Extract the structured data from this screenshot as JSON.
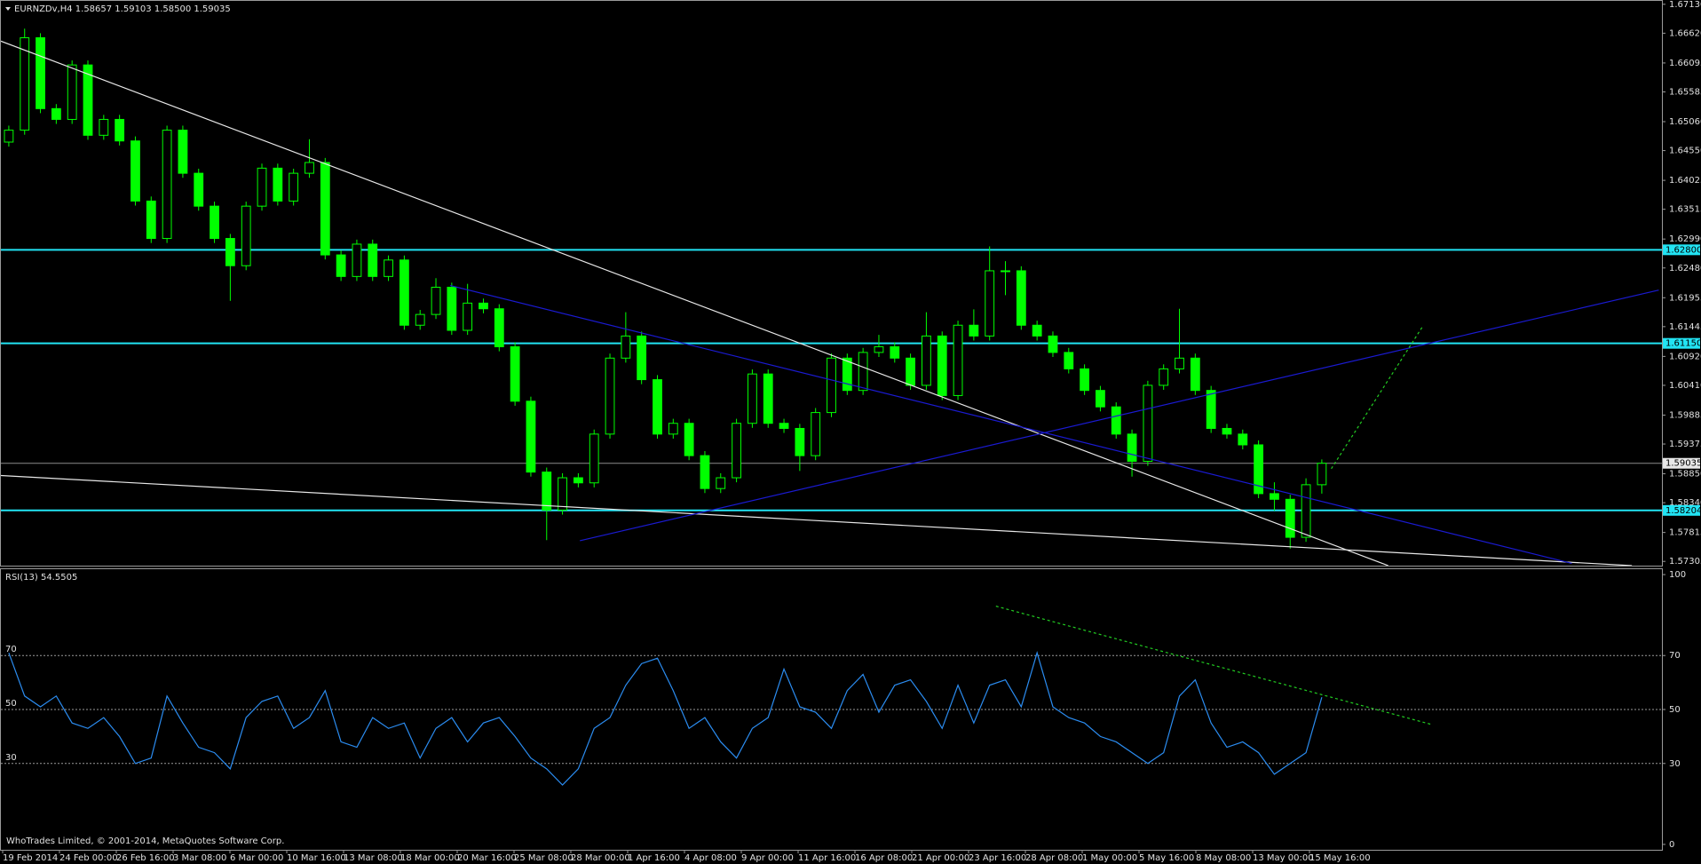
{
  "chart_data": [
    {
      "type": "candlestick",
      "title": "EURNZDv,H4  1.58657 1.59103 1.58500 1.59035",
      "color": "#00ff00",
      "x_labels": [
        "19 Feb 2014",
        "24 Feb 00:00",
        "26 Feb 16:00",
        "3 Mar 08:00",
        "6 Mar 00:00",
        "10 Mar 16:00",
        "13 Mar 08:00",
        "18 Mar 00:00",
        "20 Mar 16:00",
        "25 Mar 08:00",
        "28 Mar 00:00",
        "1 Apr 16:00",
        "4 Apr 08:00",
        "9 Apr 00:00",
        "11 Apr 16:00",
        "16 Apr 08:00",
        "21 Apr 00:00",
        "23 Apr 16:00",
        "28 Apr 08:00",
        "1 May 00:00",
        "5 May 16:00",
        "8 May 08:00",
        "13 May 00:00",
        "15 May 16:00"
      ],
      "open": [
        1.647,
        1.6491,
        1.6654,
        1.6529,
        1.651,
        1.6606,
        1.6482,
        1.651,
        1.6472,
        1.6366,
        1.63,
        1.6491,
        1.6415,
        1.6357,
        1.63,
        1.6252,
        1.6357,
        1.6424,
        1.6366,
        1.6415,
        1.6434,
        1.6271,
        1.6233,
        1.629,
        1.6233,
        1.6262,
        1.6147,
        1.6166,
        1.6214,
        1.6138,
        1.6186,
        1.6176,
        1.6109,
        1.6013,
        1.5888,
        1.5821,
        1.5878,
        1.5869,
        1.5955,
        1.6089,
        1.6128,
        1.6051,
        1.5955,
        1.5974,
        1.5917,
        1.5859,
        1.5878,
        1.5974,
        1.6061,
        1.5974,
        1.5965,
        1.5917,
        1.5993,
        1.6089,
        1.6032,
        1.6099,
        1.6109,
        1.6089,
        1.6041,
        1.6128,
        1.6023,
        1.6147,
        1.6128,
        1.6243,
        1.6243,
        1.6147,
        1.6128,
        1.6099,
        1.607,
        1.6032,
        1.6003,
        1.5955,
        1.5907,
        1.6041,
        1.607,
        1.6089,
        1.6032,
        1.5965,
        1.5955,
        1.5936,
        1.585,
        1.584,
        1.5773,
        1.58657
      ],
      "high": [
        1.6499,
        1.667,
        1.6662,
        1.6537,
        1.6614,
        1.6614,
        1.6518,
        1.6518,
        1.648,
        1.6374,
        1.6499,
        1.6499,
        1.6423,
        1.6365,
        1.6308,
        1.6365,
        1.6432,
        1.6432,
        1.6423,
        1.6475,
        1.6442,
        1.6279,
        1.6298,
        1.6298,
        1.627,
        1.627,
        1.6174,
        1.623,
        1.6222,
        1.622,
        1.6194,
        1.6184,
        1.6117,
        1.6021,
        1.5896,
        1.5886,
        1.5886,
        1.5963,
        1.6097,
        1.617,
        1.6136,
        1.6059,
        1.5982,
        1.5982,
        1.5925,
        1.5886,
        1.5982,
        1.6069,
        1.6069,
        1.5982,
        1.5973,
        1.6001,
        1.6097,
        1.6097,
        1.6107,
        1.613,
        1.6117,
        1.6097,
        1.617,
        1.6136,
        1.6155,
        1.6175,
        1.6286,
        1.626,
        1.6251,
        1.6155,
        1.6136,
        1.6107,
        1.6078,
        1.604,
        1.6011,
        1.5963,
        1.6049,
        1.6078,
        1.6176,
        1.6097,
        1.604,
        1.5973,
        1.5963,
        1.5944,
        1.587,
        1.5848,
        1.5877,
        1.59103
      ],
      "low": [
        1.6462,
        1.6483,
        1.6521,
        1.6502,
        1.6502,
        1.6474,
        1.6474,
        1.6464,
        1.6358,
        1.6292,
        1.6292,
        1.6407,
        1.6349,
        1.6292,
        1.619,
        1.6244,
        1.6349,
        1.6358,
        1.6358,
        1.6407,
        1.6263,
        1.6225,
        1.6225,
        1.6225,
        1.6225,
        1.6139,
        1.6139,
        1.6158,
        1.613,
        1.613,
        1.6168,
        1.6101,
        1.6005,
        1.588,
        1.5768,
        1.5813,
        1.5861,
        1.5861,
        1.5947,
        1.6081,
        1.6043,
        1.5947,
        1.5947,
        1.5909,
        1.5851,
        1.5851,
        1.587,
        1.5966,
        1.5966,
        1.5957,
        1.589,
        1.5909,
        1.5985,
        1.6024,
        1.6024,
        1.6091,
        1.6081,
        1.6033,
        1.6033,
        1.6015,
        1.6015,
        1.612,
        1.612,
        1.62,
        1.6139,
        1.612,
        1.6091,
        1.6062,
        1.6024,
        1.5995,
        1.5947,
        1.588,
        1.5899,
        1.6033,
        1.6062,
        1.6024,
        1.5957,
        1.5947,
        1.5928,
        1.5842,
        1.582,
        1.5753,
        1.5765,
        1.585
      ],
      "close": [
        1.6491,
        1.6654,
        1.6529,
        1.651,
        1.6606,
        1.6482,
        1.651,
        1.6472,
        1.6366,
        1.63,
        1.6491,
        1.6415,
        1.6357,
        1.63,
        1.6252,
        1.6357,
        1.6424,
        1.6366,
        1.6415,
        1.6434,
        1.6271,
        1.6233,
        1.629,
        1.6233,
        1.6262,
        1.6147,
        1.6166,
        1.6214,
        1.6138,
        1.6186,
        1.6176,
        1.6109,
        1.6013,
        1.5888,
        1.5821,
        1.5878,
        1.5869,
        1.5955,
        1.6089,
        1.6128,
        1.6051,
        1.5955,
        1.5974,
        1.5917,
        1.5859,
        1.5878,
        1.5974,
        1.6061,
        1.5974,
        1.5965,
        1.5917,
        1.5993,
        1.6089,
        1.6032,
        1.6099,
        1.6109,
        1.6089,
        1.6041,
        1.6128,
        1.6023,
        1.6147,
        1.6128,
        1.6243,
        1.6243,
        1.6147,
        1.6128,
        1.6099,
        1.607,
        1.6032,
        1.6003,
        1.5955,
        1.5907,
        1.6041,
        1.607,
        1.6089,
        1.6032,
        1.5965,
        1.5955,
        1.5936,
        1.585,
        1.584,
        1.5773,
        1.58657,
        1.59035
      ],
      "xlim": [
        0,
        105
      ],
      "ylim": [
        1.5723,
        1.6719
      ],
      "yticks": [
        {
          "value": 1.6713,
          "label": "1.67130"
        },
        {
          "value": 1.6662,
          "label": "1.66620"
        },
        1.66095,
        1.65585,
        {
          "value": 1.6506,
          "label": "1.65060"
        },
        {
          "value": 1.6455,
          "label": "1.64550"
        },
        1.64025,
        1.63515,
        {
          "value": 1.6299,
          "label": "1.62990"
        },
        {
          "value": 1.6248,
          "label": "1.62480"
        },
        1.61955,
        1.61445,
        {
          "value": 1.6092,
          "label": "1.60920"
        },
        {
          "value": 1.6041,
          "label": "1.60410"
        },
        1.59885,
        1.59375,
        {
          "value": 1.5885,
          "label": "1.58850"
        },
        {
          "value": 1.5834,
          "label": "1.58340"
        },
        1.57815,
        1.57305
      ],
      "levels": [
        {
          "value": 1.628,
          "label": "1.62800",
          "color": "#22e4f4"
        },
        {
          "value": 1.6115,
          "label": "1.61150",
          "color": "#22e4f4"
        },
        {
          "value": 1.58204,
          "label": "1.58204",
          "color": "#22e4f4"
        },
        {
          "value": 1.59035,
          "label": "1.59035",
          "color": "#8a8a8a"
        }
      ],
      "trendlines": [
        {
          "color": "#e8e8e8",
          "dashed": false,
          "points": [
            [
              0,
              1.6648
            ],
            [
              87.7,
              1.5723
            ]
          ]
        },
        {
          "color": "#e8e8e8",
          "dashed": false,
          "points": [
            [
              0,
              1.5882
            ],
            [
              103.1,
              1.5723
            ]
          ]
        },
        {
          "color": "#1a1ad0",
          "dashed": false,
          "points": [
            [
              28.4,
              1.6217
            ],
            [
              99.3,
              1.5727
            ]
          ]
        },
        {
          "color": "#1a1ad0",
          "dashed": false,
          "points": [
            [
              36.6,
              1.5767
            ],
            [
              104.8,
              1.6209
            ]
          ]
        },
        {
          "color": "#22cc22",
          "dashed": true,
          "points": [
            [
              84.1,
              1.5894
            ],
            [
              89.9,
              1.6146
            ]
          ]
        }
      ]
    },
    {
      "type": "line",
      "title": "RSI(13) 54.5505",
      "color": "#2b8cf0",
      "values": [
        71,
        55,
        51,
        55,
        45,
        43,
        47,
        40,
        30,
        32,
        55,
        45,
        36,
        34,
        28,
        47,
        53,
        55,
        43,
        47,
        57,
        38,
        36,
        47,
        43,
        45,
        32,
        43,
        47,
        38,
        45,
        47,
        40,
        32,
        28,
        22,
        28,
        43,
        47,
        59,
        67,
        69,
        57,
        43,
        47,
        38,
        32,
        43,
        47,
        65,
        51,
        49,
        43,
        57,
        63,
        49,
        59,
        61,
        53,
        43,
        59,
        45,
        59,
        61,
        51,
        71,
        51,
        47,
        45,
        40,
        38,
        34,
        30,
        34,
        55,
        61,
        45,
        36,
        38,
        34,
        26,
        30,
        34,
        54.5505
      ],
      "xlim": [
        0,
        105
      ],
      "ylim": [
        -2,
        102
      ],
      "yticks": [
        0,
        30,
        50,
        70,
        100
      ],
      "levels": [
        70,
        50,
        30
      ],
      "trendlines": [
        {
          "color": "#22cc22",
          "dashed": true,
          "points": [
            [
              62.9,
              88.3
            ],
            [
              90.4,
              44.5
            ]
          ]
        }
      ]
    }
  ],
  "footer": "WhoTrades Limited, © 2001-2014, MetaQuotes Software Corp."
}
